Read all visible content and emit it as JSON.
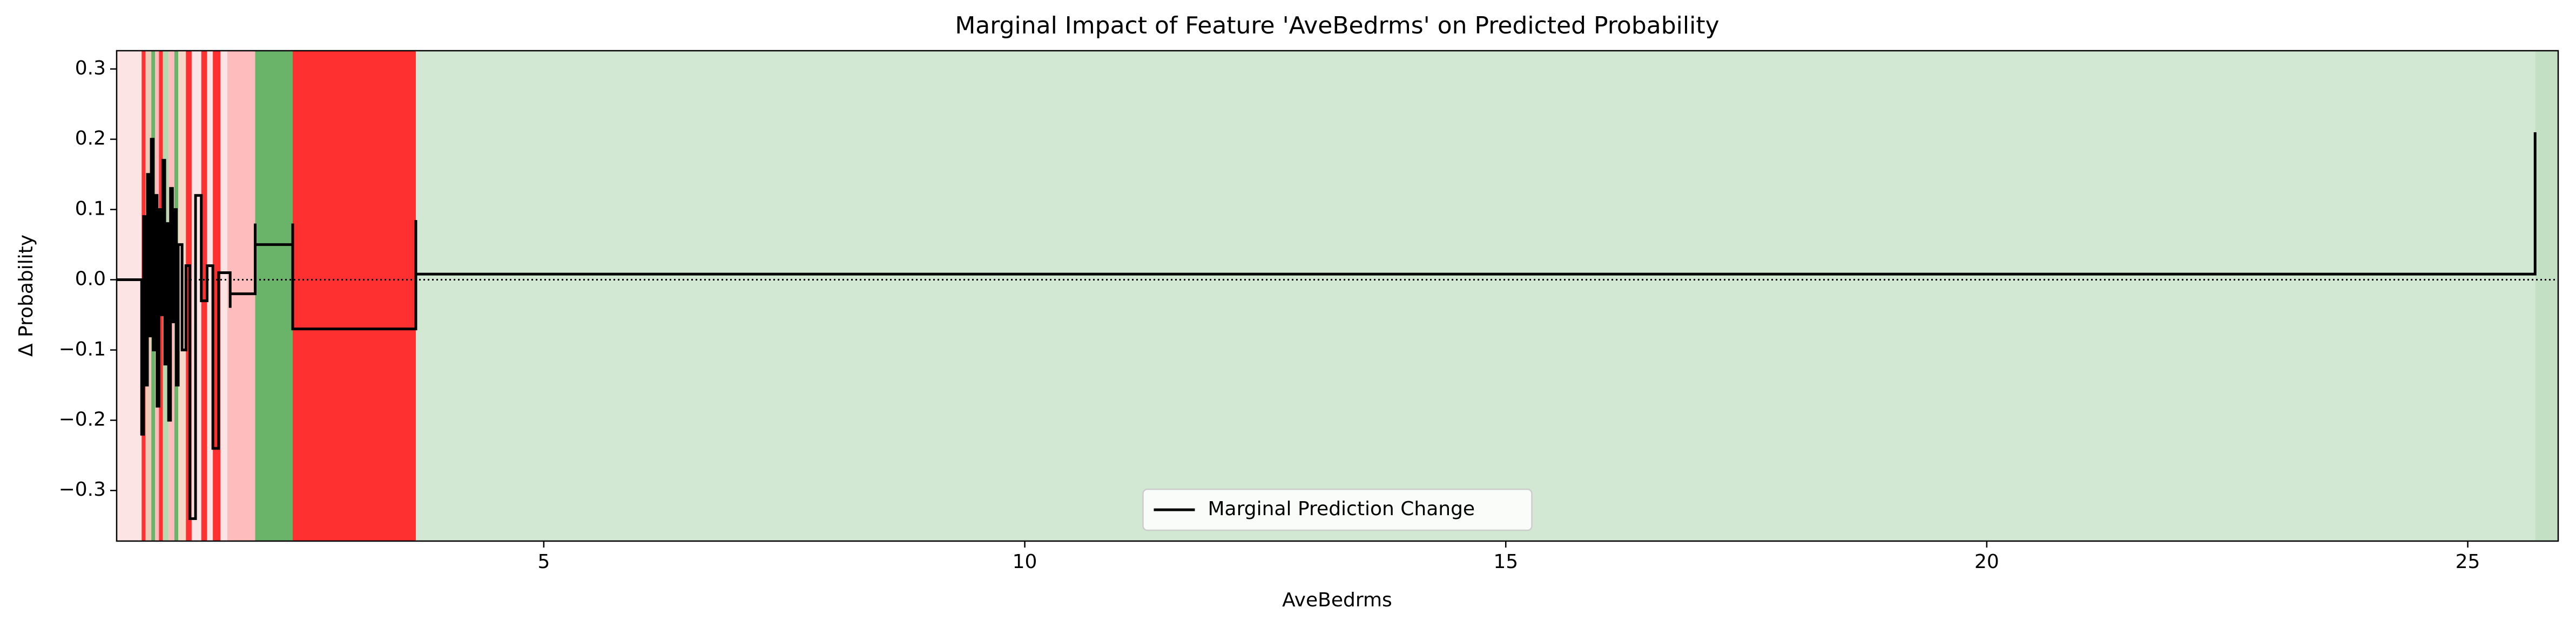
{
  "chart_data": {
    "type": "step",
    "title": "Marginal Impact of Feature 'AveBedrms' on Predicted Probability",
    "x_label": "AveBedrms",
    "y_label": "Δ Probability",
    "xlim": [
      0.56,
      25.94
    ],
    "ylim": [
      -0.372,
      0.326
    ],
    "xticks": [
      5,
      10,
      15,
      20,
      25
    ],
    "yticks": [
      {
        "value": -0.3,
        "label": "−0.3"
      },
      {
        "value": -0.2,
        "label": "−0.2"
      },
      {
        "value": -0.1,
        "label": "−0.1"
      },
      {
        "value": 0,
        "label": "0.0"
      },
      0.1,
      0.2,
      0.3
    ],
    "zero_line": true,
    "legend_position": "lower center",
    "bands": [
      {
        "x0": 0.56,
        "x1": 0.82,
        "color": "#fde4e4"
      },
      {
        "x0": 0.82,
        "x1": 0.86,
        "color": "#ff3030"
      },
      {
        "x0": 0.86,
        "x1": 0.92,
        "color": "#f0c8b8"
      },
      {
        "x0": 0.92,
        "x1": 0.96,
        "color": "#6ab46a"
      },
      {
        "x0": 0.96,
        "x1": 1.0,
        "color": "#ffbcbc"
      },
      {
        "x0": 1.0,
        "x1": 1.04,
        "color": "#ff3030"
      },
      {
        "x0": 1.04,
        "x1": 1.1,
        "color": "#b8d8b0"
      },
      {
        "x0": 1.1,
        "x1": 1.16,
        "color": "#ffbcbc"
      },
      {
        "x0": 1.16,
        "x1": 1.2,
        "color": "#6ab46a"
      },
      {
        "x0": 1.2,
        "x1": 1.28,
        "color": "#f4d8c8"
      },
      {
        "x0": 1.28,
        "x1": 1.34,
        "color": "#ff3030"
      },
      {
        "x0": 1.34,
        "x1": 1.44,
        "color": "#fde4e4"
      },
      {
        "x0": 1.44,
        "x1": 1.5,
        "color": "#ff3030"
      },
      {
        "x0": 1.5,
        "x1": 1.56,
        "color": "#fde4e4"
      },
      {
        "x0": 1.56,
        "x1": 1.64,
        "color": "#ff3030"
      },
      {
        "x0": 1.64,
        "x1": 1.71,
        "color": "#fde4e4"
      },
      {
        "x0": 1.71,
        "x1": 2.0,
        "color": "#ffbcbc"
      },
      {
        "x0": 2.0,
        "x1": 2.39,
        "color": "#6ab46a"
      },
      {
        "x0": 2.39,
        "x1": 3.67,
        "color": "#ff3030"
      },
      {
        "x0": 3.67,
        "x1": 25.7,
        "color": "#d3e8d3"
      },
      {
        "x0": 25.7,
        "x1": 25.94,
        "color": "#c4e0c4"
      }
    ],
    "series": [
      {
        "name": "Marginal Prediction Change",
        "color": "#000000",
        "x": [
          0.56,
          0.82,
          0.84,
          0.86,
          0.88,
          0.9,
          0.92,
          0.94,
          0.96,
          0.98,
          1.0,
          1.02,
          1.04,
          1.06,
          1.08,
          1.1,
          1.12,
          1.14,
          1.16,
          1.18,
          1.2,
          1.24,
          1.28,
          1.32,
          1.38,
          1.44,
          1.5,
          1.56,
          1.62,
          1.74,
          1.74,
          2.0,
          2.0,
          2.39,
          2.39,
          3.67,
          3.67,
          25.7,
          25.7
        ],
        "values": [
          0,
          -0.22,
          0.09,
          -0.15,
          0.15,
          -0.08,
          0.2,
          -0.1,
          0.12,
          -0.18,
          0.1,
          -0.05,
          0.17,
          -0.12,
          0.08,
          -0.2,
          0.13,
          -0.06,
          0.1,
          -0.15,
          0.05,
          -0.1,
          0.02,
          -0.34,
          0.12,
          -0.03,
          0.02,
          -0.24,
          0.01,
          -0.04,
          -0.02,
          0.08,
          0.05,
          0.08,
          -0.07,
          0.085,
          0.008,
          0.008,
          0.21
        ]
      }
    ]
  }
}
